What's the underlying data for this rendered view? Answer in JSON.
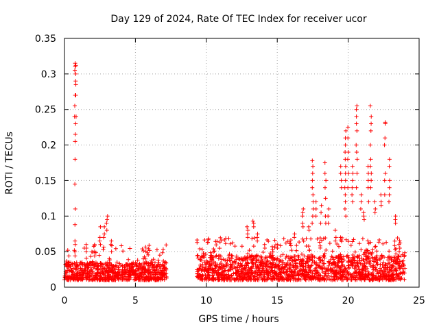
{
  "chart_data": {
    "type": "scatter",
    "title": "Day 129 of 2024, Rate Of TEC Index for receiver ucor",
    "xlabel": "GPS time / hours",
    "ylabel": "ROTI / TECUs",
    "xlim": [
      0,
      25
    ],
    "ylim": [
      0,
      0.35
    ],
    "xticks": [
      0,
      5,
      10,
      15,
      20,
      25
    ],
    "yticks": [
      0,
      0.05,
      0.1,
      0.15,
      0.2,
      0.25,
      0.3,
      0.35
    ],
    "xtick_labels": [
      "0",
      "5",
      "10",
      "15",
      "20",
      "25"
    ],
    "ytick_labels": [
      "0",
      "0.05",
      "0.1",
      "0.15",
      "0.2",
      "0.25",
      "0.3",
      "0.35"
    ],
    "grid": true,
    "marker": "plus",
    "color": "#ff0000",
    "series": [
      {
        "name": "ROTI",
        "segments": [
          {
            "x_range": [
              0,
              7.2
            ],
            "baseline": [
              0.01,
              0.035
            ]
          },
          {
            "x_range": [
              9.3,
              24.0
            ],
            "baseline": [
              0.01,
              0.045
            ]
          }
        ],
        "spikes": [
          {
            "x": 0.75,
            "values": [
              0.315,
              0.31,
              0.305,
              0.29,
              0.27,
              0.255,
              0.24,
              0.23,
              0.215,
              0.205,
              0.18,
              0.145,
              0.11,
              0.088,
              0.065,
              0.06
            ]
          },
          {
            "x": 0.8,
            "values": [
              0.312,
              0.3,
              0.285,
              0.27,
              0.24
            ]
          },
          {
            "x": 1.5,
            "values": [
              0.06,
              0.055,
              0.05
            ]
          },
          {
            "x": 2.5,
            "values": [
              0.085,
              0.07,
              0.065,
              0.06
            ]
          },
          {
            "x": 2.8,
            "values": [
              0.085,
              0.075,
              0.07
            ]
          },
          {
            "x": 3.0,
            "values": [
              0.1,
              0.095,
              0.09,
              0.08
            ]
          },
          {
            "x": 3.3,
            "values": [
              0.065,
              0.06,
              0.05
            ]
          },
          {
            "x": 12.9,
            "values": [
              0.085,
              0.08,
              0.075,
              0.07
            ]
          },
          {
            "x": 13.3,
            "values": [
              0.093,
              0.09,
              0.085
            ]
          },
          {
            "x": 13.6,
            "values": [
              0.075,
              0.07,
              0.065
            ]
          },
          {
            "x": 14.1,
            "values": [
              0.06,
              0.055
            ]
          },
          {
            "x": 15.0,
            "values": [
              0.06,
              0.055
            ]
          },
          {
            "x": 16.2,
            "values": [
              0.075,
              0.07
            ]
          },
          {
            "x": 16.8,
            "values": [
              0.11,
              0.105,
              0.1,
              0.09,
              0.085
            ]
          },
          {
            "x": 17.2,
            "values": [
              0.085,
              0.08
            ]
          },
          {
            "x": 17.5,
            "values": [
              0.178,
              0.17,
              0.16,
              0.15,
              0.14,
              0.13,
              0.12,
              0.11,
              0.1,
              0.09
            ]
          },
          {
            "x": 17.7,
            "values": [
              0.12,
              0.11,
              0.1
            ]
          },
          {
            "x": 18.1,
            "values": [
              0.115,
              0.105,
              0.09
            ]
          },
          {
            "x": 18.4,
            "values": [
              0.175,
              0.16,
              0.15,
              0.14,
              0.125,
              0.1,
              0.09
            ]
          },
          {
            "x": 18.6,
            "values": [
              0.11,
              0.1,
              0.09
            ]
          },
          {
            "x": 19.1,
            "values": [
              0.08,
              0.07,
              0.065
            ]
          },
          {
            "x": 19.5,
            "values": [
              0.17,
              0.16,
              0.15,
              0.14
            ]
          },
          {
            "x": 19.8,
            "values": [
              0.22,
              0.21,
              0.2,
              0.19,
              0.18,
              0.17,
              0.16,
              0.15,
              0.14,
              0.13,
              0.12,
              0.11,
              0.1
            ]
          },
          {
            "x": 20.0,
            "values": [
              0.225,
              0.21,
              0.19,
              0.18,
              0.16,
              0.14
            ]
          },
          {
            "x": 20.3,
            "values": [
              0.17,
              0.16,
              0.15,
              0.14,
              0.13,
              0.12
            ]
          },
          {
            "x": 20.6,
            "values": [
              0.255,
              0.25,
              0.24,
              0.23,
              0.22,
              0.2,
              0.19,
              0.18,
              0.16,
              0.14
            ]
          },
          {
            "x": 20.9,
            "values": [
              0.13,
              0.12,
              0.11
            ]
          },
          {
            "x": 21.1,
            "values": [
              0.105,
              0.1,
              0.095
            ]
          },
          {
            "x": 21.4,
            "values": [
              0.17,
              0.16,
              0.15,
              0.14,
              0.12
            ]
          },
          {
            "x": 21.6,
            "values": [
              0.255,
              0.24,
              0.23,
              0.22,
              0.2,
              0.18,
              0.17,
              0.16,
              0.15,
              0.14
            ]
          },
          {
            "x": 21.9,
            "values": [
              0.12,
              0.11,
              0.105
            ]
          },
          {
            "x": 22.3,
            "values": [
              0.13,
              0.12,
              0.115
            ]
          },
          {
            "x": 22.6,
            "values": [
              0.232,
              0.23,
              0.21,
              0.2,
              0.16,
              0.15,
              0.13
            ]
          },
          {
            "x": 22.9,
            "values": [
              0.18,
              0.17,
              0.15,
              0.14,
              0.13,
              0.12
            ]
          },
          {
            "x": 23.3,
            "values": [
              0.1,
              0.095,
              0.09
            ]
          },
          {
            "x": 23.6,
            "values": [
              0.06,
              0.055,
              0.05
            ]
          }
        ]
      }
    ]
  }
}
